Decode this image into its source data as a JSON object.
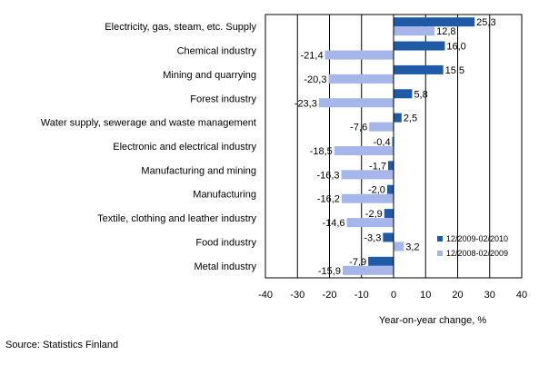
{
  "chart_data": {
    "type": "bar",
    "orientation": "horizontal",
    "categories": [
      "Electricity, gas, steam, etc. Supply",
      "Chemical industry",
      "Mining and quarrying",
      "Forest industry",
      "Water supply, sewerage and waste management",
      "Electronic and electrical industry",
      "Manufacturing and mining",
      "Manufacturing",
      "Textile, clothing and leather industry",
      "Food industry",
      "Metal industry"
    ],
    "series": [
      {
        "name": "12/2009-02/2010",
        "color": "#1f5aa6",
        "values": [
          25.3,
          16.0,
          15.5,
          5.8,
          2.5,
          -0.4,
          -1.7,
          -2.0,
          -2.9,
          -3.3,
          -7.9
        ],
        "labels": [
          "25,3",
          "16,0",
          "15,5",
          "5,8",
          "2,5",
          "-0,4",
          "-1,7",
          "-2,0",
          "-2,9",
          "-3,3",
          "-7,9"
        ]
      },
      {
        "name": "12/2008-02/2009",
        "color": "#a6b5ea",
        "values": [
          12.8,
          -21.4,
          -20.3,
          -23.3,
          -7.6,
          -18.5,
          -16.3,
          -16.2,
          -14.6,
          3.2,
          -15.9
        ],
        "labels": [
          "12,8",
          "-21,4",
          "-20,3",
          "-23,3",
          "-7,6",
          "-18,5",
          "-16,3",
          "-16,2",
          "-14,6",
          "3,2",
          "-15,9"
        ]
      }
    ],
    "xlim": [
      -40,
      40
    ],
    "xticks": [
      "-40",
      "-30",
      "-20",
      "-10",
      "0",
      "10",
      "20",
      "30",
      "40"
    ],
    "xlabel": "Year-on-year change, %",
    "ylabel": "",
    "title": "",
    "grid": "vertical",
    "legend_position": "bottom-right"
  },
  "source": "Source: Statistics Finland"
}
